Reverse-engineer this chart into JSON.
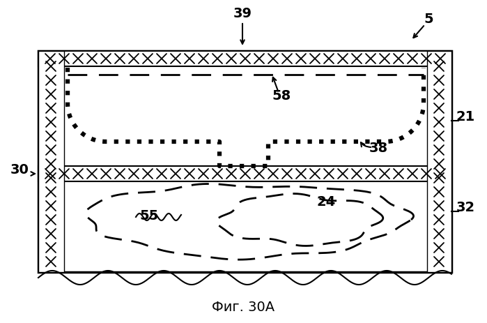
{
  "title": "Фиг. 30А",
  "label_5": "5",
  "label_39": "39",
  "label_58": "58",
  "label_21": "21",
  "label_38": "38",
  "label_30": "30",
  "label_32": "32",
  "label_55": "55",
  "label_24": "24",
  "bg_color": "#ffffff",
  "line_color": "#000000"
}
